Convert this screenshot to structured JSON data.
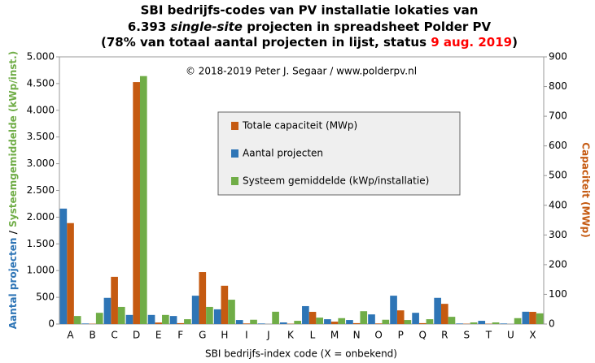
{
  "chart_data": {
    "type": "bar",
    "title": {
      "line1": "SBI bedrijfs-codes van PV installatie lokaties van",
      "line2a": "6.393 ",
      "line2b": "single-site",
      "line2c": " projecten in spreadsheet Polder PV",
      "line3a": "(78% van totaal aantal projecten in lijst,  status ",
      "line3b": "9 aug. 2019",
      "line3c": ")"
    },
    "annotation": "© 2018-2019  Peter J. Segaar / www.polderpv.nl",
    "x_label": "SBI bedrijfs-index code (X = onbekend)",
    "y_label": {
      "part1": "Aantal projecten",
      "part2": " / ",
      "part3": "Systeemgemiddelde (kWp/inst.)"
    },
    "y2_label": "Capaciteit (MWp)",
    "categories": [
      "A",
      "B",
      "C",
      "D",
      "E",
      "F",
      "G",
      "H",
      "I",
      "J",
      "K",
      "L",
      "M",
      "N",
      "O",
      "P",
      "Q",
      "R",
      "S",
      "T",
      "U",
      "X"
    ],
    "series": [
      {
        "name": "Totale capaciteit (MWp)",
        "color": "#c55a11",
        "axis": "y2",
        "values": [
          340,
          1,
          159,
          815,
          5,
          3,
          175,
          129,
          2,
          0,
          1,
          41,
          8,
          3,
          2,
          46,
          3,
          68,
          1,
          1,
          0,
          41
        ]
      },
      {
        "name": "Aantal projecten",
        "color": "#2e75b6",
        "values": [
          2160,
          10,
          490,
          170,
          170,
          150,
          530,
          275,
          75,
          10,
          30,
          335,
          90,
          75,
          180,
          530,
          210,
          490,
          10,
          60,
          10,
          230
        ]
      },
      {
        "name": "Systeem gemiddelde (kWp/installatie)",
        "color": "#70ad47",
        "values": [
          150,
          210,
          320,
          4640,
          170,
          90,
          320,
          455,
          80,
          230,
          60,
          120,
          110,
          240,
          80,
          75,
          90,
          135,
          30,
          30,
          110,
          200
        ]
      }
    ],
    "ylim": [
      0,
      5000
    ],
    "yticks": [
      0,
      {
        "value": 500,
        "label": "500"
      },
      {
        "value": 1000,
        "label": "1.000"
      },
      {
        "value": 1500,
        "label": "1.500"
      },
      {
        "value": 2000,
        "label": "2.000"
      },
      {
        "value": 2500,
        "label": "2.500"
      },
      {
        "value": 3000,
        "label": "3.000"
      },
      {
        "value": 3500,
        "label": "3.500"
      },
      {
        "value": 4000,
        "label": "4.000"
      },
      {
        "value": 4500,
        "label": "4.500"
      },
      {
        "value": 5000,
        "label": "5.000"
      }
    ],
    "y2lim": [
      0,
      900
    ],
    "y2ticks": [
      0,
      100,
      200,
      300,
      400,
      500,
      600,
      700,
      800,
      900
    ],
    "grid": false
  }
}
